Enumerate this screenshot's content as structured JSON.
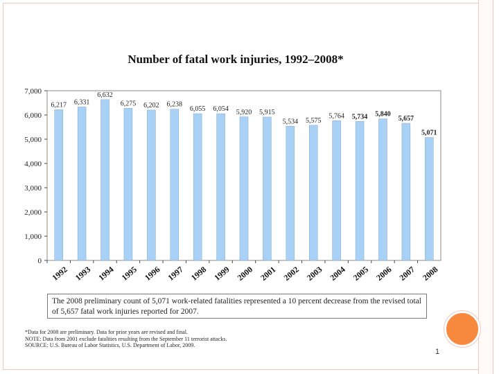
{
  "slide": {
    "title": "Number of fatal work injuries, 1992–2008*",
    "page_number": "1",
    "note": "The 2008 preliminary count of 5,071 work-related fatalities represented a 10 percent decrease from the revised total of 5,657 fatal work injuries reported for 2007.",
    "footnotes": [
      "*Data for 2008 are preliminary.  Data for prior years are revised and final.",
      "NOTE: Data from 2001 exclude fatalities resulting from the September 11 terrorist attacks.",
      "SOURCE: U.S. Bureau of Labor Statistics, U.S. Department of Labor, 2009."
    ]
  },
  "colors": {
    "bar": "#a9d0f5",
    "accent_circle": "#f7893f",
    "frame": "#f0c8b8"
  },
  "chart_data": {
    "type": "bar",
    "title": "Number of fatal work injuries, 1992–2008*",
    "categories": [
      "1992",
      "1993",
      "1994",
      "1995",
      "1996",
      "1997",
      "1998",
      "1999",
      "2000",
      "2001",
      "2002",
      "2003",
      "2004",
      "2005",
      "2006",
      "2007",
      "2008"
    ],
    "values": [
      6217,
      6331,
      6632,
      6275,
      6202,
      6238,
      6055,
      6054,
      5920,
      5915,
      5534,
      5575,
      5764,
      5734,
      5840,
      5657,
      5071
    ],
    "data_labels": [
      "6,217",
      "6,331",
      "6,632",
      "6,275",
      "6,202",
      "6,238",
      "6,055",
      "6,054",
      "5,920",
      "5,915",
      "5,534",
      "5,575",
      "5,764",
      "5,734",
      "5,840",
      "5,657",
      "5,071"
    ],
    "y_ticks": [
      0,
      1000,
      2000,
      3000,
      4000,
      5000,
      6000,
      7000
    ],
    "y_tick_labels": [
      "0",
      "1,000",
      "2,000",
      "3,000",
      "4,000",
      "5,000",
      "6,000",
      "7,000"
    ],
    "ylim": [
      0,
      7000
    ],
    "grid": false,
    "xlabel": "",
    "ylabel": ""
  }
}
